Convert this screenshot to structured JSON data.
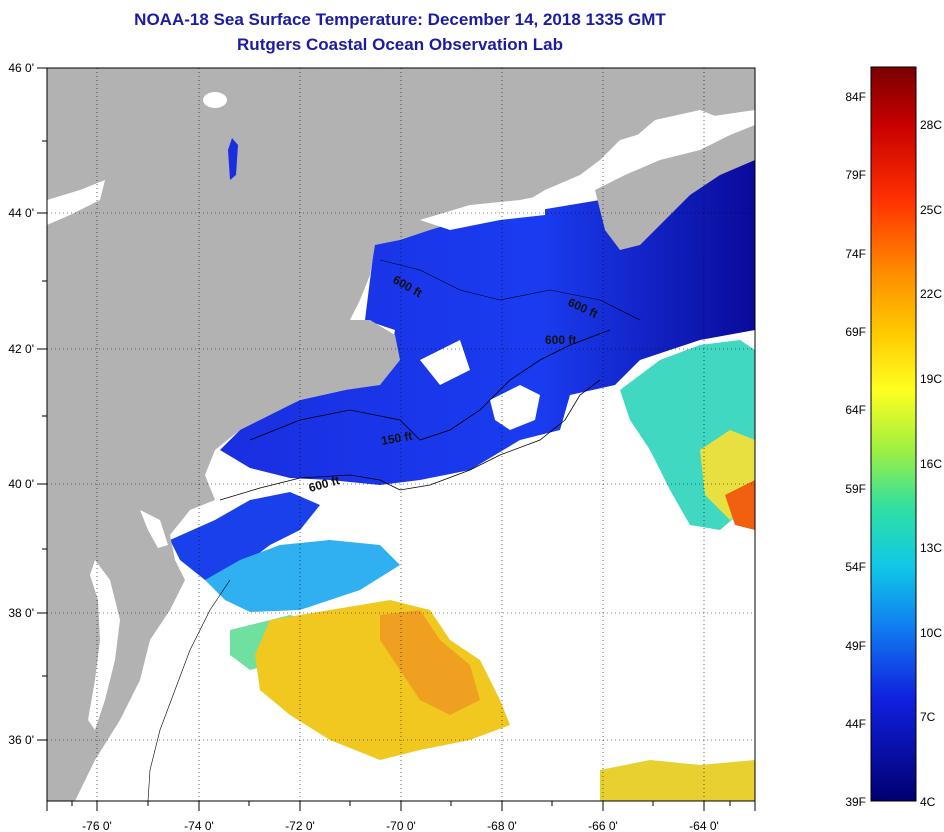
{
  "title": "NOAA-18 Sea Surface Temperature:  December 14, 2018 1335 GMT",
  "subtitle": "Rutgers Coastal Ocean Observation Lab",
  "lon_ticks": [
    "-76 0'",
    "-74 0'",
    "-72 0'",
    "-70 0'",
    "-68 0'",
    "-66 0'",
    "-64 0'"
  ],
  "lat_ticks": [
    "46 0'",
    "44 0'",
    "42 0'",
    "40 0'",
    "38 0'",
    "36 0'"
  ],
  "contour_labels": [
    "600 ft",
    "600 ft",
    "600 ft",
    "150 ft",
    "600 ft"
  ],
  "colorbar": {
    "fahrenheit": [
      "84F",
      "79F",
      "74F",
      "69F",
      "64F",
      "59F",
      "54F",
      "49F",
      "44F",
      "39F"
    ],
    "celsius": [
      "28C",
      "25C",
      "22C",
      "19C",
      "16C",
      "13C",
      "10C",
      "7C",
      "4C"
    ]
  },
  "colors": {
    "land": "#b2b2b2",
    "cloud": "#ffffff",
    "title": "#1c1ca0"
  }
}
